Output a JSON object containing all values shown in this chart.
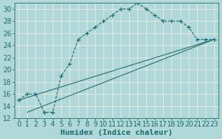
{
  "xlabel": "Humidex (Indice chaleur)",
  "bg_color": "#b0d8d8",
  "grid_color": "#e8e8e8",
  "line_color": "#1a6b6b",
  "xlim": [
    -0.5,
    23.5
  ],
  "ylim": [
    12,
    31
  ],
  "xticks": [
    0,
    1,
    2,
    3,
    4,
    5,
    6,
    7,
    8,
    9,
    10,
    11,
    12,
    13,
    14,
    15,
    16,
    17,
    18,
    19,
    20,
    21,
    22,
    23
  ],
  "yticks": [
    12,
    14,
    16,
    18,
    20,
    22,
    24,
    26,
    28,
    30
  ],
  "line1_x": [
    0,
    1,
    2,
    3,
    4,
    5,
    6,
    7,
    8,
    9,
    10,
    11,
    12,
    13,
    14,
    15,
    16,
    17,
    18,
    19,
    20,
    21,
    22,
    23
  ],
  "line1_y": [
    15,
    16,
    16,
    13,
    13,
    19,
    21,
    25,
    26,
    27,
    28,
    29,
    30,
    30,
    31,
    30,
    29,
    28,
    28,
    28,
    27,
    25,
    25,
    25
  ],
  "line2_x": [
    0,
    23
  ],
  "line2_y": [
    15,
    25
  ],
  "line3_x": [
    1,
    23
  ],
  "line3_y": [
    13,
    25
  ],
  "font_size": 7,
  "label_font_size": 8
}
